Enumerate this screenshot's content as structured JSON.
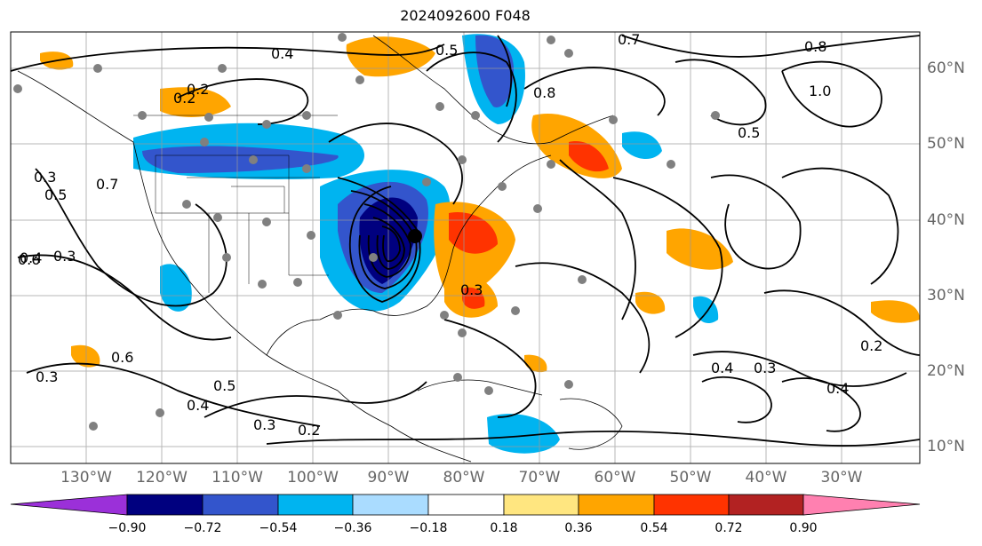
{
  "title": "2024092600 F048",
  "lon_labels": [
    "130°W",
    "120°W",
    "110°W",
    "100°W",
    "90°W",
    "80°W",
    "70°W",
    "60°W",
    "50°W",
    "40°W",
    "30°W"
  ],
  "lat_labels": [
    "60°N",
    "50°N",
    "40°N",
    "30°N",
    "20°N",
    "10°N"
  ],
  "colorbar": {
    "ticks": [
      "−0.90",
      "−0.72",
      "−0.54",
      "−0.36",
      "−0.18",
      "0.18",
      "0.36",
      "0.54",
      "0.72",
      "0.90"
    ],
    "colors": [
      "#9b30d9",
      "#00007f",
      "#3355cc",
      "#00b4f0",
      "#aadcff",
      "#ffffff",
      "#ffe680",
      "#ffa500",
      "#ff3300",
      "#b22222",
      "#ff80b0"
    ]
  },
  "contour_labels": [
    "0.4",
    "0.2",
    "0.3",
    "0.5",
    "0.6",
    "0.7",
    "0.8",
    "1.0",
    "0.4",
    "0.3",
    "0.2",
    "0.3",
    "0.5",
    "0.4",
    "0.3",
    "0.2",
    "0.6",
    "0.7",
    "0.8",
    "0.5",
    "0.4",
    "0.3",
    "0.3",
    "0.5",
    "0.4",
    "0.2"
  ],
  "colors": {
    "axis_label": "#666666",
    "contour": "#000000",
    "station": "#808080",
    "center": "#000000",
    "grid": "#999999"
  }
}
